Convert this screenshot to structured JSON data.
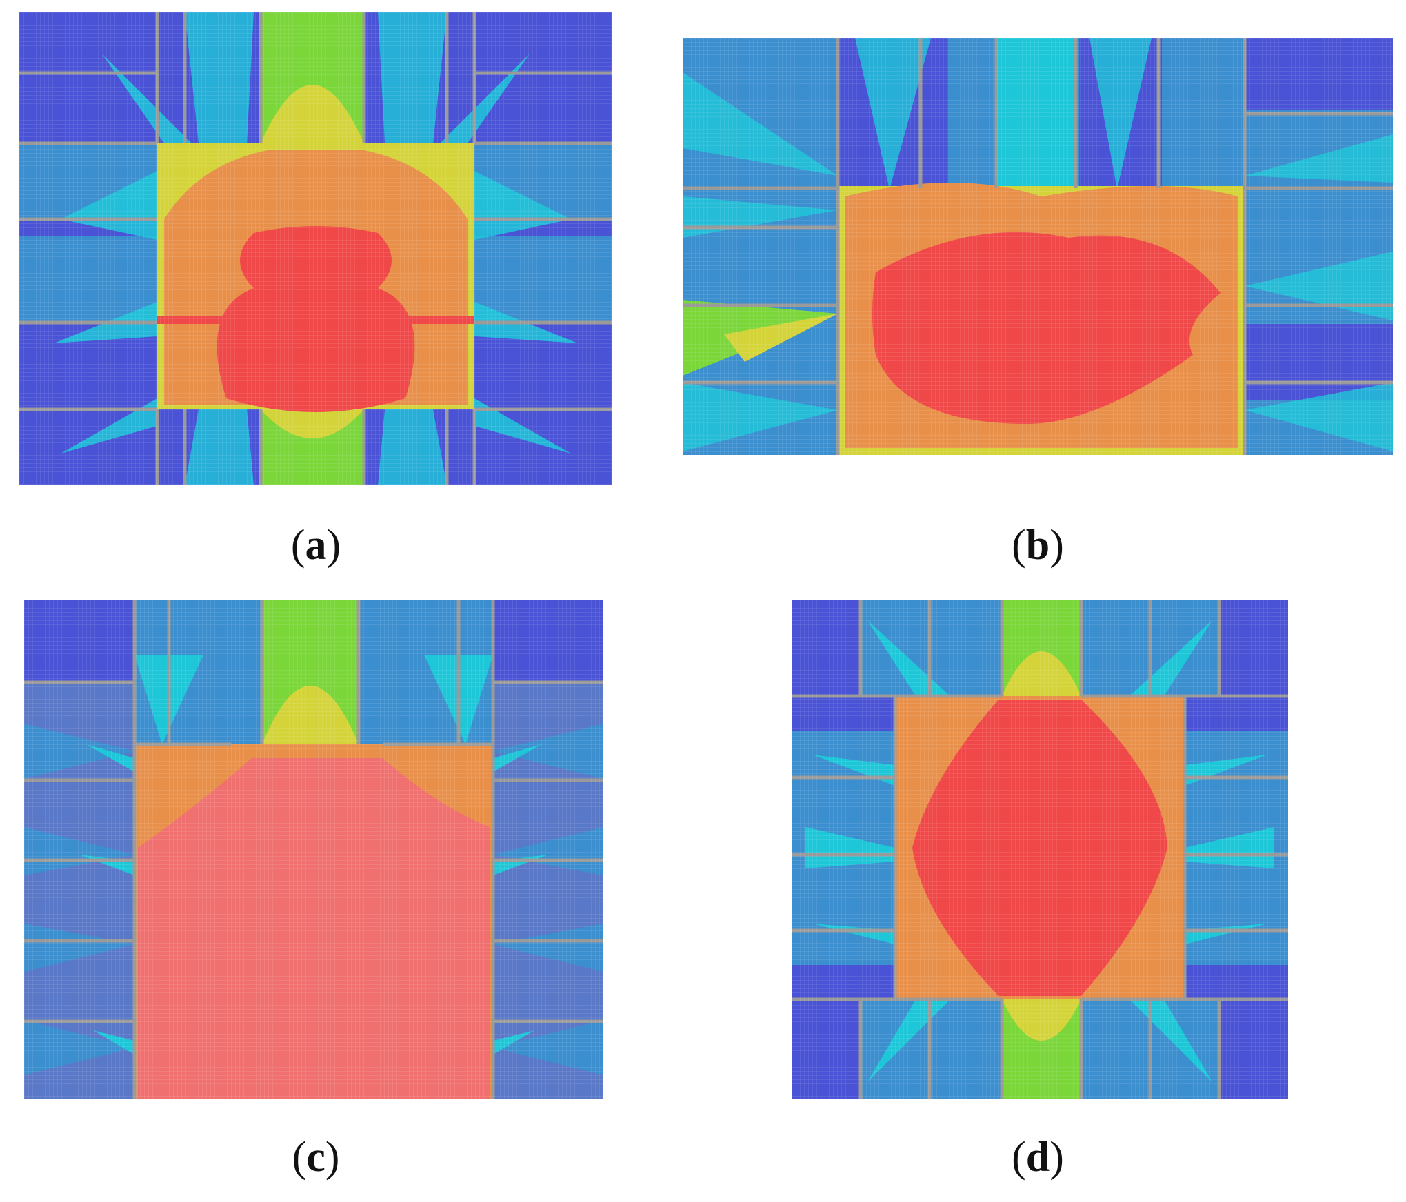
{
  "figure": {
    "panels": [
      {
        "id": "a",
        "caption_open": "(",
        "caption_letter": "a",
        "caption_close": ")"
      },
      {
        "id": "b",
        "caption_open": "(",
        "caption_letter": "b",
        "caption_close": ")"
      },
      {
        "id": "c",
        "caption_open": "(",
        "caption_letter": "c",
        "caption_close": ")"
      },
      {
        "id": "d",
        "caption_open": "(",
        "caption_letter": "d",
        "caption_close": ")"
      }
    ],
    "colormap": {
      "blue": "#4a52d6",
      "steel": "#3c8fcf",
      "cyan": "#1ec7d8",
      "green": "#7bd63a",
      "yellow": "#d4d43a",
      "orange": "#e8904a",
      "red": "#f04848",
      "wall": "#9a9a9a"
    }
  }
}
